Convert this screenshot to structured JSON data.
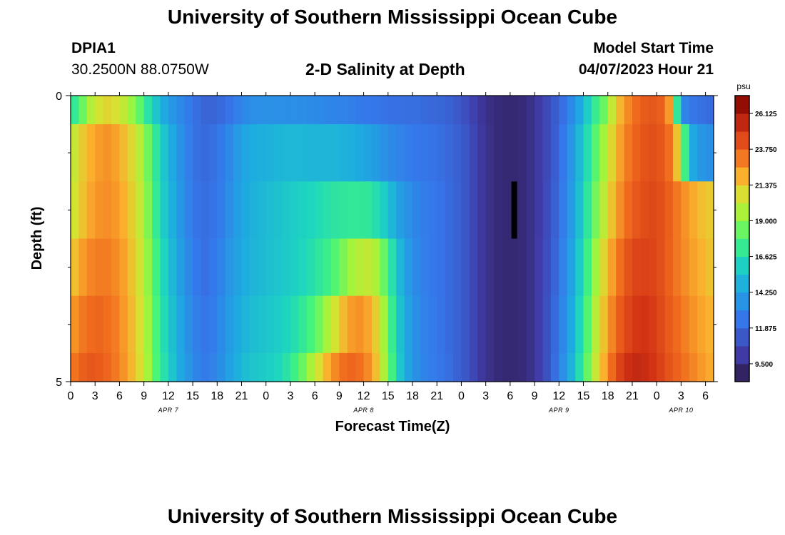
{
  "page": {
    "title": "University of Southern Mississippi Ocean Cube",
    "station_id": "DPIA1",
    "station_coords": "30.2500N  88.0750W",
    "plot_title": "2-D Salinity at Depth",
    "model_start_label": "Model Start Time",
    "model_start_value": "04/07/2023 Hour 21",
    "footer_title": "University of Southern Mississippi Ocean Cube"
  },
  "chart_data": {
    "type": "heatmap",
    "title": "2-D Salinity at Depth",
    "xlabel": "Forecast Time(Z)",
    "ylabel": "Depth (ft)",
    "ylim": [
      0,
      5
    ],
    "y_tick_labels": [
      "0",
      "5"
    ],
    "x_tick_labels": [
      "0",
      "3",
      "6",
      "9",
      "12",
      "15",
      "18",
      "21",
      "0",
      "3",
      "6",
      "9",
      "12",
      "15",
      "18",
      "21",
      "0",
      "3",
      "6",
      "9",
      "12",
      "15",
      "18",
      "21",
      "0",
      "3",
      "6"
    ],
    "day_labels": [
      "APR 7",
      "APR 8",
      "APR 9",
      "APR 10"
    ],
    "colorbar": {
      "unit": "psu",
      "min": 8.3125,
      "max": 27.3125,
      "tick_values": [
        26.125,
        23.75,
        21.375,
        19.0,
        16.625,
        14.25,
        11.875,
        9.5
      ],
      "tick_labels": [
        "26.125",
        "23.750",
        "21.375",
        "19.000",
        "16.625",
        "14.250",
        "11.875",
        "9.500"
      ]
    },
    "hours": [
      0,
      1,
      2,
      3,
      4,
      5,
      6,
      7,
      8,
      9,
      10,
      11,
      12,
      13,
      14,
      15,
      16,
      17,
      18,
      19,
      20,
      21,
      22,
      23,
      24,
      25,
      26,
      27,
      28,
      29,
      30,
      31,
      32,
      33,
      34,
      35,
      36,
      37,
      38,
      39,
      40,
      41,
      42,
      43,
      44,
      45,
      46,
      47,
      48,
      49,
      50,
      51,
      52,
      53,
      54,
      55,
      56,
      57,
      58,
      59,
      60,
      61,
      62,
      63,
      64,
      65,
      66,
      67,
      68,
      69,
      70,
      71,
      72,
      73,
      74,
      75,
      76,
      77,
      78
    ],
    "depths": [
      0,
      0.5,
      1.5,
      2.5,
      3.5,
      4.5
    ],
    "salinity": [
      [
        17.2,
        18.4,
        19.8,
        20.6,
        21.0,
        20.7,
        20.1,
        19.2,
        18.2,
        16.8,
        15.6,
        14.6,
        13.8,
        13.2,
        12.6,
        12.1,
        11.8,
        11.8,
        12.0,
        12.3,
        12.8,
        13.2,
        13.4,
        13.5,
        13.5,
        13.5,
        13.4,
        13.4,
        13.4,
        13.3,
        13.2,
        13.1,
        13.0,
        12.9,
        12.8,
        12.6,
        12.5,
        12.4,
        12.3,
        12.2,
        12.2,
        12.1,
        12.1,
        12.0,
        11.9,
        11.8,
        11.6,
        11.3,
        10.9,
        10.4,
        9.9,
        9.5,
        9.3,
        9.2,
        9.2,
        9.3,
        9.6,
        10.1,
        10.7,
        11.4,
        12.2,
        13.2,
        14.4,
        15.9,
        17.3,
        18.4,
        20.2,
        21.8,
        22.8,
        23.5,
        23.9,
        24.0,
        23.8,
        22.5,
        17.0,
        13.0,
        12.4,
        12.2,
        12.0
      ],
      [
        20.3,
        21.3,
        22.0,
        22.4,
        22.6,
        22.3,
        21.7,
        20.9,
        19.9,
        18.5,
        17.0,
        15.6,
        14.6,
        13.6,
        12.8,
        12.2,
        12.0,
        12.2,
        12.6,
        13.2,
        13.9,
        14.4,
        14.7,
        14.8,
        14.9,
        15.0,
        15.1,
        15.1,
        15.1,
        15.0,
        15.0,
        15.0,
        15.0,
        14.9,
        14.8,
        14.6,
        14.3,
        14.0,
        13.6,
        13.2,
        12.9,
        12.7,
        12.5,
        12.4,
        12.3,
        12.1,
        11.9,
        11.6,
        11.2,
        10.6,
        10.0,
        9.6,
        9.3,
        9.2,
        9.2,
        9.3,
        9.6,
        10.1,
        10.7,
        11.5,
        12.5,
        13.7,
        15.1,
        16.6,
        18.1,
        19.4,
        21.0,
        22.3,
        23.2,
        23.7,
        24.1,
        24.2,
        24.0,
        23.4,
        21.5,
        17.5,
        14.5,
        13.8,
        13.5
      ],
      [
        20.6,
        21.5,
        22.2,
        22.6,
        22.7,
        22.5,
        22.0,
        21.2,
        20.2,
        18.8,
        17.2,
        15.8,
        14.8,
        13.8,
        12.9,
        12.3,
        12.1,
        12.3,
        12.7,
        13.4,
        14.1,
        14.6,
        14.9,
        15.1,
        15.3,
        15.5,
        15.7,
        15.9,
        16.1,
        16.3,
        16.5,
        16.7,
        16.9,
        17.0,
        17.1,
        17.1,
        17.0,
        16.6,
        15.9,
        15.0,
        14.1,
        13.5,
        13.0,
        12.7,
        12.5,
        12.3,
        12.0,
        11.7,
        11.2,
        10.6,
        10.0,
        9.6,
        9.3,
        9.2,
        9.2,
        9.3,
        9.6,
        10.1,
        10.8,
        11.6,
        12.7,
        13.9,
        15.4,
        17.0,
        18.6,
        20.0,
        21.5,
        22.7,
        23.5,
        24.0,
        24.3,
        24.4,
        24.2,
        23.8,
        23.2,
        22.6,
        22.1,
        21.6,
        21.3
      ],
      [
        21.6,
        22.4,
        22.9,
        23.1,
        23.1,
        22.8,
        22.3,
        21.5,
        20.5,
        19.1,
        17.6,
        16.2,
        15.1,
        14.1,
        13.2,
        12.5,
        12.2,
        12.5,
        13.0,
        13.7,
        14.3,
        14.7,
        15.0,
        15.2,
        15.4,
        15.6,
        15.8,
        16.0,
        16.3,
        16.6,
        17.0,
        17.4,
        18.0,
        18.7,
        19.4,
        19.9,
        20.1,
        19.6,
        18.4,
        16.7,
        15.0,
        13.9,
        13.2,
        12.8,
        12.5,
        12.3,
        12.0,
        11.7,
        11.2,
        10.6,
        10.0,
        9.6,
        9.3,
        9.2,
        9.2,
        9.3,
        9.6,
        10.2,
        10.9,
        11.8,
        12.9,
        14.2,
        15.8,
        17.5,
        19.3,
        20.9,
        22.3,
        23.4,
        24.1,
        24.5,
        24.6,
        24.5,
        24.2,
        23.7,
        23.2,
        22.7,
        22.3,
        21.9,
        21.5
      ],
      [
        22.6,
        23.2,
        23.5,
        23.6,
        23.4,
        23.1,
        22.5,
        21.7,
        20.7,
        19.3,
        17.8,
        16.5,
        15.4,
        14.4,
        13.5,
        12.8,
        12.4,
        12.7,
        13.3,
        14.0,
        14.6,
        15.0,
        15.3,
        15.5,
        15.7,
        15.9,
        16.2,
        16.6,
        17.1,
        17.7,
        18.5,
        19.5,
        20.6,
        21.7,
        22.4,
        22.6,
        22.2,
        21.2,
        19.4,
        17.3,
        15.4,
        14.2,
        13.4,
        12.9,
        12.6,
        12.3,
        12.0,
        11.7,
        11.2,
        10.6,
        10.0,
        9.6,
        9.3,
        9.2,
        9.2,
        9.3,
        9.6,
        10.2,
        11.0,
        12.0,
        13.2,
        14.6,
        16.2,
        18.0,
        19.9,
        21.5,
        22.9,
        23.9,
        24.5,
        24.9,
        25.0,
        24.8,
        24.4,
        23.9,
        23.5,
        23.0,
        22.6,
        22.2,
        21.9
      ],
      [
        23.3,
        23.8,
        24.0,
        23.9,
        23.6,
        23.2,
        22.6,
        21.8,
        20.8,
        19.4,
        17.9,
        16.7,
        15.6,
        14.6,
        13.7,
        13.0,
        12.6,
        12.9,
        13.5,
        14.2,
        14.8,
        15.3,
        15.6,
        15.8,
        16.0,
        16.3,
        16.8,
        17.5,
        18.4,
        19.5,
        20.7,
        21.9,
        22.8,
        23.4,
        23.6,
        23.4,
        22.8,
        21.6,
        19.7,
        17.6,
        15.6,
        14.3,
        13.5,
        13.0,
        12.7,
        12.4,
        12.1,
        11.7,
        11.2,
        10.6,
        10.0,
        9.6,
        9.3,
        9.2,
        9.2,
        9.3,
        9.6,
        10.2,
        11.0,
        12.1,
        13.4,
        14.9,
        16.6,
        18.4,
        20.3,
        22.0,
        23.5,
        24.6,
        25.2,
        25.4,
        25.3,
        25.0,
        24.6,
        24.1,
        23.7,
        23.3,
        22.9,
        22.5,
        22.1
      ]
    ],
    "annotation": {
      "type": "vertical-bar",
      "hour": 54,
      "depth_range": [
        1.5,
        2.5
      ],
      "color": "#000000"
    }
  }
}
